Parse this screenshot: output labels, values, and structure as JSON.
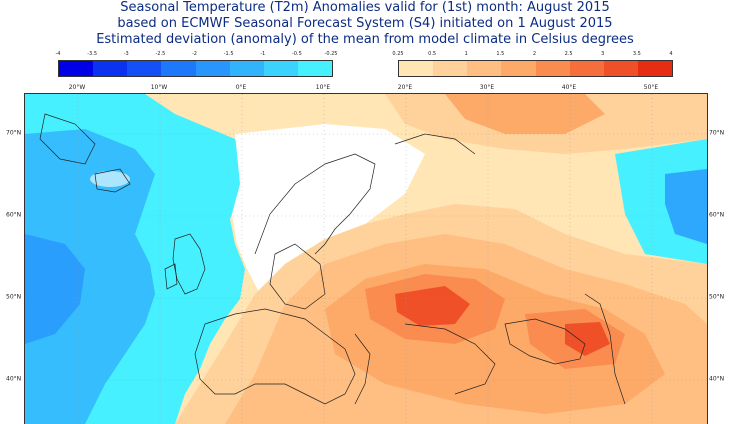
{
  "titles": {
    "line1": "Seasonal Temperature (T2m) Anomalies valid for (1st) month: August 2015",
    "line2": "based on ECMWF Seasonal Forecast System (S4) initiated on 1 August 2015",
    "line3": "Estimated deviation (anomaly) of the mean from model climate in Celsius degrees"
  },
  "colorbar": {
    "cold_ticks": [
      "-4",
      "-3.5",
      "-3",
      "-2.5",
      "-2",
      "-1.5",
      "-1",
      "-0.5",
      "-0.25"
    ],
    "warm_ticks": [
      "0.25",
      "0.5",
      "1",
      "1.5",
      "2",
      "2.5",
      "3",
      "3.5",
      "4"
    ],
    "cold_colors": [
      "#0000e6",
      "#0a32ef",
      "#1450f5",
      "#1e78fa",
      "#2896fc",
      "#32b4fd",
      "#3cd2fe",
      "#46f0ff"
    ],
    "warm_colors": [
      "#ffe6b4",
      "#ffd29b",
      "#ffbe82",
      "#fdaa69",
      "#fa8c50",
      "#f56e3c",
      "#ef5028",
      "#e62d14"
    ]
  },
  "axes": {
    "longitudes": [
      "20°W",
      "10°W",
      "0°E",
      "10°E",
      "20°E",
      "30°E",
      "40°E",
      "50°E"
    ],
    "latitudes": [
      "70°N",
      "60°N",
      "50°N",
      "40°N"
    ]
  }
}
